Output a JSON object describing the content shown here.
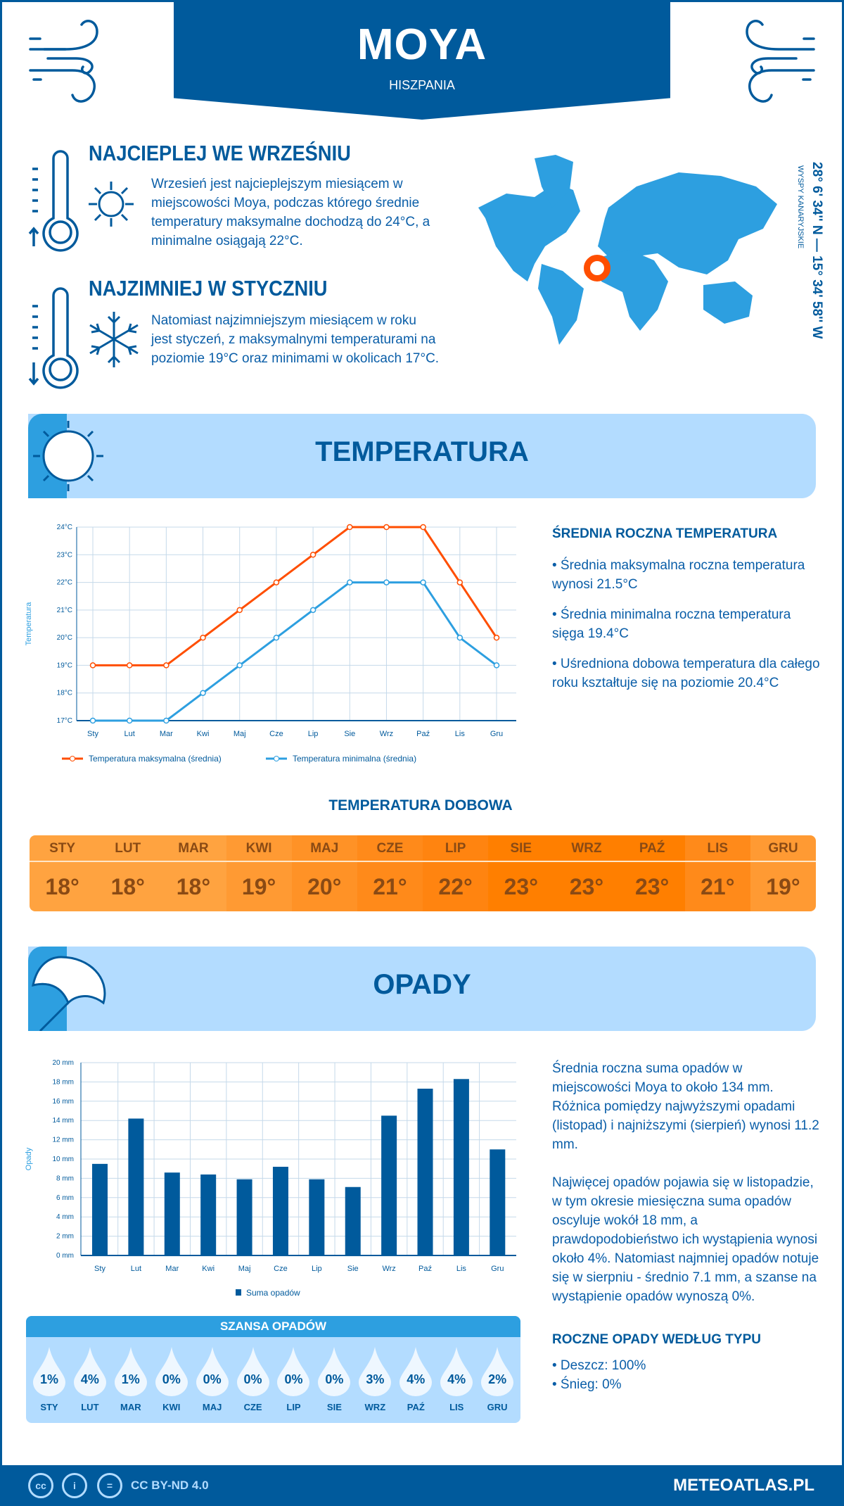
{
  "header": {
    "title": "MOYA",
    "country": "HISZPANIA"
  },
  "warmest": {
    "title": "NAJCIEPLEJ WE WRZEŚNIU",
    "text": "Wrzesień jest najcieplejszym miesiącem w miejscowości Moya, podczas którego średnie temperatury maksymalne dochodzą do 24°C, a minimalne osiągają 22°C."
  },
  "coldest": {
    "title": "NAJZIMNIEJ W STYCZNIU",
    "text": "Natomiast najzimniejszym miesiącem w roku jest styczeń, z maksymalnymi temperaturami na poziomie 19°C oraz minimami w okolicach 17°C."
  },
  "map": {
    "coordinates": "28° 6' 34'' N — 15° 34' 58'' W",
    "region": "WYSPY KANARYJSKIE",
    "marker_color": "#ff4e00"
  },
  "temperature_section": {
    "title": "TEMPERATURA"
  },
  "temperature_summary": {
    "heading": "ŚREDNIA ROCZNA TEMPERATURA",
    "items": [
      "• Średnia maksymalna roczna temperatura wynosi 21.5°C",
      "• Średnia minimalna roczna temperatura sięga 19.4°C",
      "• Uśredniona dobowa temperatura dla całego roku kształtuje się na poziomie 20.4°C"
    ]
  },
  "daily": {
    "title": "TEMPERATURA DOBOWA",
    "months": [
      "STY",
      "LUT",
      "MAR",
      "KWI",
      "MAJ",
      "CZE",
      "LIP",
      "SIE",
      "WRZ",
      "PAŹ",
      "LIS",
      "GRU"
    ],
    "values": [
      "18°",
      "18°",
      "18°",
      "19°",
      "20°",
      "21°",
      "22°",
      "23°",
      "23°",
      "23°",
      "21°",
      "19°"
    ],
    "colors": [
      "#ffa340",
      "#ffa340",
      "#ffa340",
      "#ff9a33",
      "#ff9226",
      "#ff8a1a",
      "#ff8410",
      "#ff7f00",
      "#ff7f00",
      "#ff7f00",
      "#ff8a1a",
      "#ff9a33"
    ]
  },
  "precip_section": {
    "title": "OPADY"
  },
  "precip_summary": {
    "p1": "Średnia roczna suma opadów w miejscowości Moya to około 134 mm. Różnica pomiędzy najwyższymi opadami (listopad) i najniższymi (sierpień) wynosi 11.2 mm.",
    "p2": "Najwięcej opadów pojawia się w listopadzie, w tym okresie miesięczna suma opadów oscyluje wokół 18 mm, a prawdopodobieństwo ich wystąpienia wynosi około 4%. Natomiast najmniej opadów notuje się w sierpniu - średnio 7.1 mm, a szanse na wystąpienie opadów wynoszą 0%."
  },
  "chance": {
    "title": "SZANSA OPADÓW",
    "months": [
      "STY",
      "LUT",
      "MAR",
      "KWI",
      "MAJ",
      "CZE",
      "LIP",
      "SIE",
      "WRZ",
      "PAŹ",
      "LIS",
      "GRU"
    ],
    "values": [
      "1%",
      "4%",
      "1%",
      "0%",
      "0%",
      "0%",
      "0%",
      "0%",
      "3%",
      "4%",
      "4%",
      "2%"
    ]
  },
  "precip_type": {
    "heading": "ROCZNE OPADY WEDŁUG TYPU",
    "items": [
      "• Deszcz: 100%",
      "• Śnieg: 0%"
    ]
  },
  "footer": {
    "license": "CC BY-ND 4.0",
    "site": "METEOATLAS.PL",
    "icons": [
      "cc",
      "by",
      "nd"
    ]
  },
  "chart_data": [
    {
      "type": "line",
      "categories": [
        "Sty",
        "Lut",
        "Mar",
        "Kwi",
        "Maj",
        "Cze",
        "Lip",
        "Sie",
        "Wrz",
        "Paź",
        "Lis",
        "Gru"
      ],
      "series": [
        {
          "name": "Temperatura maksymalna (średnia)",
          "color": "#ff4e00",
          "values": [
            19,
            19,
            19,
            20,
            21,
            22,
            23,
            24,
            24,
            24,
            22,
            20
          ]
        },
        {
          "name": "Temperatura minimalna (średnia)",
          "color": "#2d9fe0",
          "values": [
            17,
            17,
            17,
            18,
            19,
            20,
            21,
            22,
            22,
            22,
            20,
            19
          ]
        }
      ],
      "ylabel": "Temperatura",
      "ylim": [
        17,
        24
      ],
      "yticks": [
        "17°C",
        "18°C",
        "19°C",
        "20°C",
        "21°C",
        "22°C",
        "23°C",
        "24°C"
      ],
      "grid": true,
      "legend": "bottom"
    },
    {
      "type": "bar",
      "categories": [
        "Sty",
        "Lut",
        "Mar",
        "Kwi",
        "Maj",
        "Cze",
        "Lip",
        "Sie",
        "Wrz",
        "Paź",
        "Lis",
        "Gru"
      ],
      "series": [
        {
          "name": "Suma opadów",
          "color": "#005a9c",
          "values": [
            9.5,
            14.2,
            8.6,
            8.4,
            7.9,
            9.2,
            7.9,
            7.1,
            14.5,
            17.3,
            18.3,
            11.0
          ]
        }
      ],
      "ylabel": "Opady",
      "ylim": [
        0,
        20
      ],
      "yticks": [
        "0 mm",
        "2 mm",
        "4 mm",
        "6 mm",
        "8 mm",
        "10 mm",
        "12 mm",
        "14 mm",
        "16 mm",
        "18 mm",
        "20 mm"
      ],
      "grid": true,
      "legend": "bottom"
    }
  ]
}
